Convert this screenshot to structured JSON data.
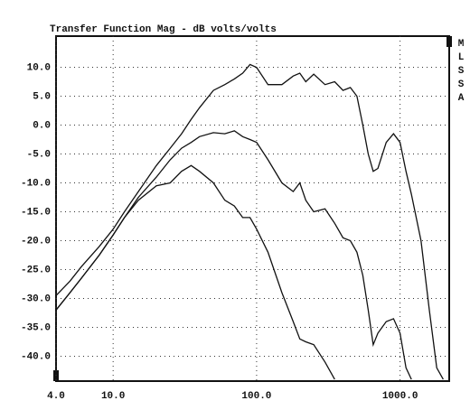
{
  "chart_data": {
    "type": "line",
    "title": "Transfer Function Mag - dB volts/volts",
    "side_label": [
      "M",
      "L",
      "S",
      "S",
      "A"
    ],
    "log_x": true,
    "grid": true,
    "x": [
      4,
      5,
      6,
      8,
      10,
      12,
      15,
      20,
      25,
      30,
      35,
      40,
      50,
      60,
      70,
      80,
      90,
      100,
      120,
      150,
      180,
      200,
      220,
      250,
      300,
      350,
      400,
      450,
      500,
      550,
      600,
      650,
      700,
      800,
      900,
      1000,
      1100,
      1200,
      1400,
      1600,
      1800,
      2000
    ],
    "series": [
      {
        "color": "#111111",
        "values": [
          -29.5,
          -27,
          -24.5,
          -21,
          -18,
          -15,
          -11.5,
          -7,
          -4,
          -1.5,
          1,
          3,
          6,
          7,
          8,
          9,
          10.5,
          10,
          7,
          7,
          8.5,
          9,
          7.5,
          8.8,
          7,
          7.5,
          6,
          6.5,
          5,
          0,
          -5,
          -8,
          -7.5,
          -3,
          -1.5,
          -3,
          -8,
          -12,
          -20,
          -32,
          -42,
          -44
        ]
      },
      {
        "color": "#111111",
        "values": [
          -32,
          -29,
          -26.5,
          -22.5,
          -19,
          -16,
          -12.5,
          -9,
          -6,
          -4,
          -3,
          -2,
          -1.3,
          -1.5,
          -1,
          -2,
          -2.5,
          -3,
          -6,
          -10,
          -11.5,
          -10,
          -13,
          -15,
          -14.5,
          -17,
          -19.5,
          -20,
          -22,
          -26,
          -32,
          -38,
          -36,
          -34,
          -33.5,
          -36,
          -42,
          -44,
          null,
          null,
          null,
          null
        ]
      },
      {
        "color": "#111111",
        "values": [
          -32,
          -29,
          -26.5,
          -22.5,
          -19,
          -16,
          -13,
          -10.5,
          -10,
          -8,
          -7,
          -8,
          -10,
          -13,
          -14,
          -16,
          -16,
          -18,
          -22,
          -29,
          -34,
          -37,
          -37.5,
          -38,
          -41,
          -44,
          null,
          null,
          null,
          null,
          null,
          null,
          null,
          null,
          null,
          null,
          null,
          null,
          null,
          null,
          null,
          null
        ]
      }
    ],
    "xlim": [
      4,
      2200
    ],
    "ylim": [
      -44.3,
      15.4
    ],
    "xticks": [
      {
        "value": 4,
        "label": "4.0"
      },
      {
        "value": 10,
        "label": "10.0"
      },
      {
        "value": 100,
        "label": "100.0"
      },
      {
        "value": 1000,
        "label": "1000.0"
      }
    ],
    "yticks": [
      {
        "value": 10,
        "label": "10.0"
      },
      {
        "value": 5,
        "label": "5.0"
      },
      {
        "value": 0,
        "label": "0.0"
      },
      {
        "value": -5,
        "label": "-5.0"
      },
      {
        "value": -10,
        "label": "-10.0"
      },
      {
        "value": -15,
        "label": "-15.0"
      },
      {
        "value": -20,
        "label": "-20.0"
      },
      {
        "value": -25,
        "label": "-25.0"
      },
      {
        "value": -30,
        "label": "-30.0"
      },
      {
        "value": -35,
        "label": "-35.0"
      },
      {
        "value": -40,
        "label": "-40.0"
      }
    ]
  }
}
